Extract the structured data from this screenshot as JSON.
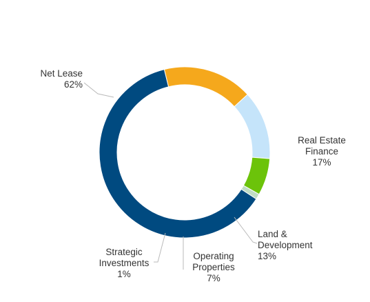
{
  "chart_data": {
    "type": "pie",
    "title": "",
    "donut": true,
    "slices": [
      {
        "name": "Net Lease",
        "lines": [
          "Net Lease"
        ],
        "pct_label": "62%",
        "value": 62,
        "color": "#004a80"
      },
      {
        "name": "Real Estate Finance",
        "lines": [
          "Real Estate",
          "Finance"
        ],
        "pct_label": "17%",
        "value": 17,
        "color": "#f5a81c"
      },
      {
        "name": "Land & Development",
        "lines": [
          "Land &",
          "Development"
        ],
        "pct_label": "13%",
        "value": 13,
        "color": "#c5e4fa"
      },
      {
        "name": "Operating Properties",
        "lines": [
          "Operating",
          "Properties"
        ],
        "pct_label": "7%",
        "value": 7,
        "color": "#6cc30a"
      },
      {
        "name": "Strategic Investments",
        "lines": [
          "Strategic",
          "Investments"
        ],
        "pct_label": "1%",
        "value": 1,
        "color": "#c0dcc4"
      }
    ],
    "legend": "none"
  }
}
